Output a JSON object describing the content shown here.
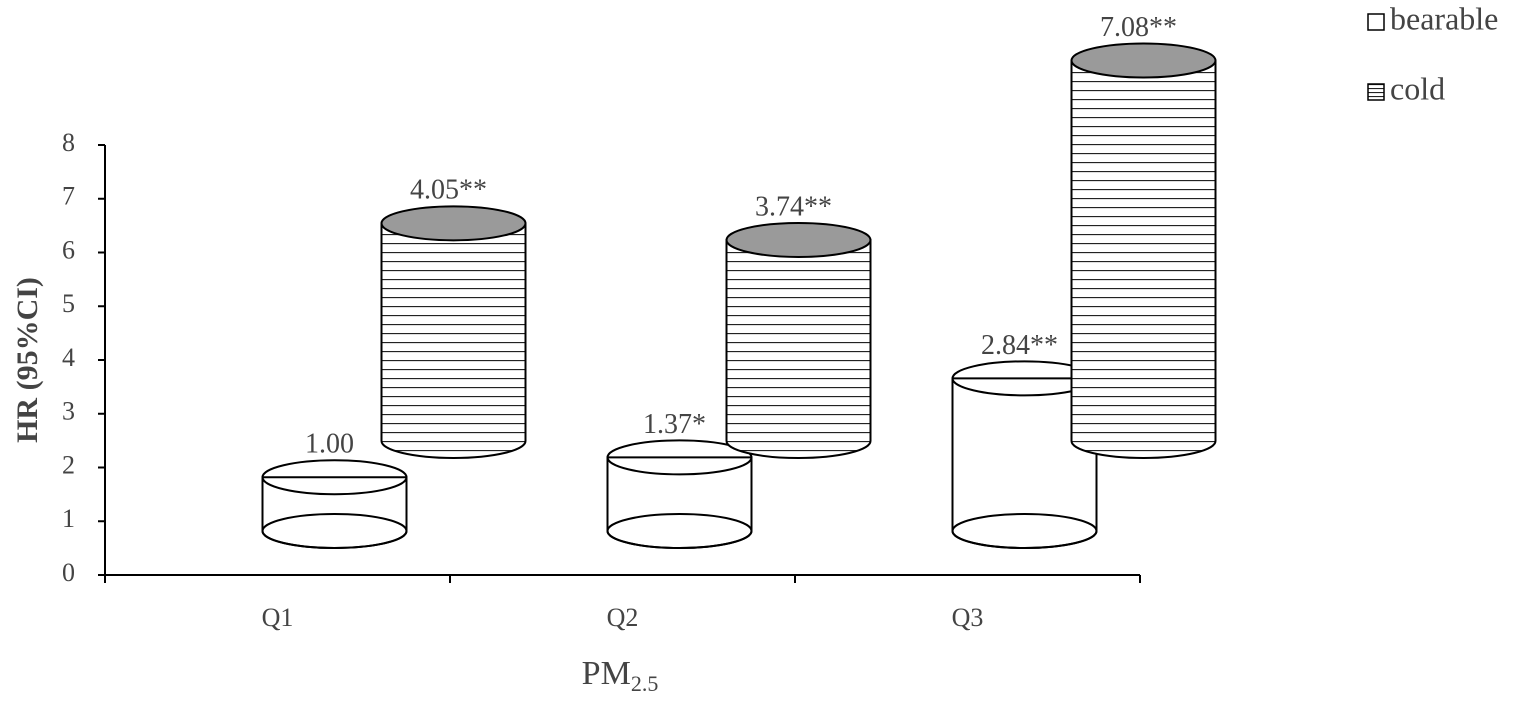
{
  "chart_data": {
    "type": "cylinder",
    "y_label": "HR (95%CI)",
    "x_label": {
      "text": "PM",
      "subscript": "2.5"
    },
    "categories": [
      "Q1",
      "Q2",
      "Q3"
    ],
    "series": [
      {
        "name": "bearable",
        "color": "#ffffff",
        "pattern": "none",
        "values": [
          1.0,
          1.37,
          2.84
        ],
        "value_labels": [
          "1.00",
          "1.37*",
          "2.84**"
        ]
      },
      {
        "name": "cold",
        "color": "#9a9a9a",
        "pattern": "horizontal-lines",
        "values": [
          4.05,
          3.74,
          7.08
        ],
        "value_labels": [
          "4.05**",
          "3.74**",
          "7.08**"
        ]
      }
    ],
    "ylim": [
      0,
      8
    ],
    "yticks": [
      0,
      1,
      2,
      3,
      4,
      5,
      6,
      7,
      8
    ],
    "legend": "top-right"
  }
}
